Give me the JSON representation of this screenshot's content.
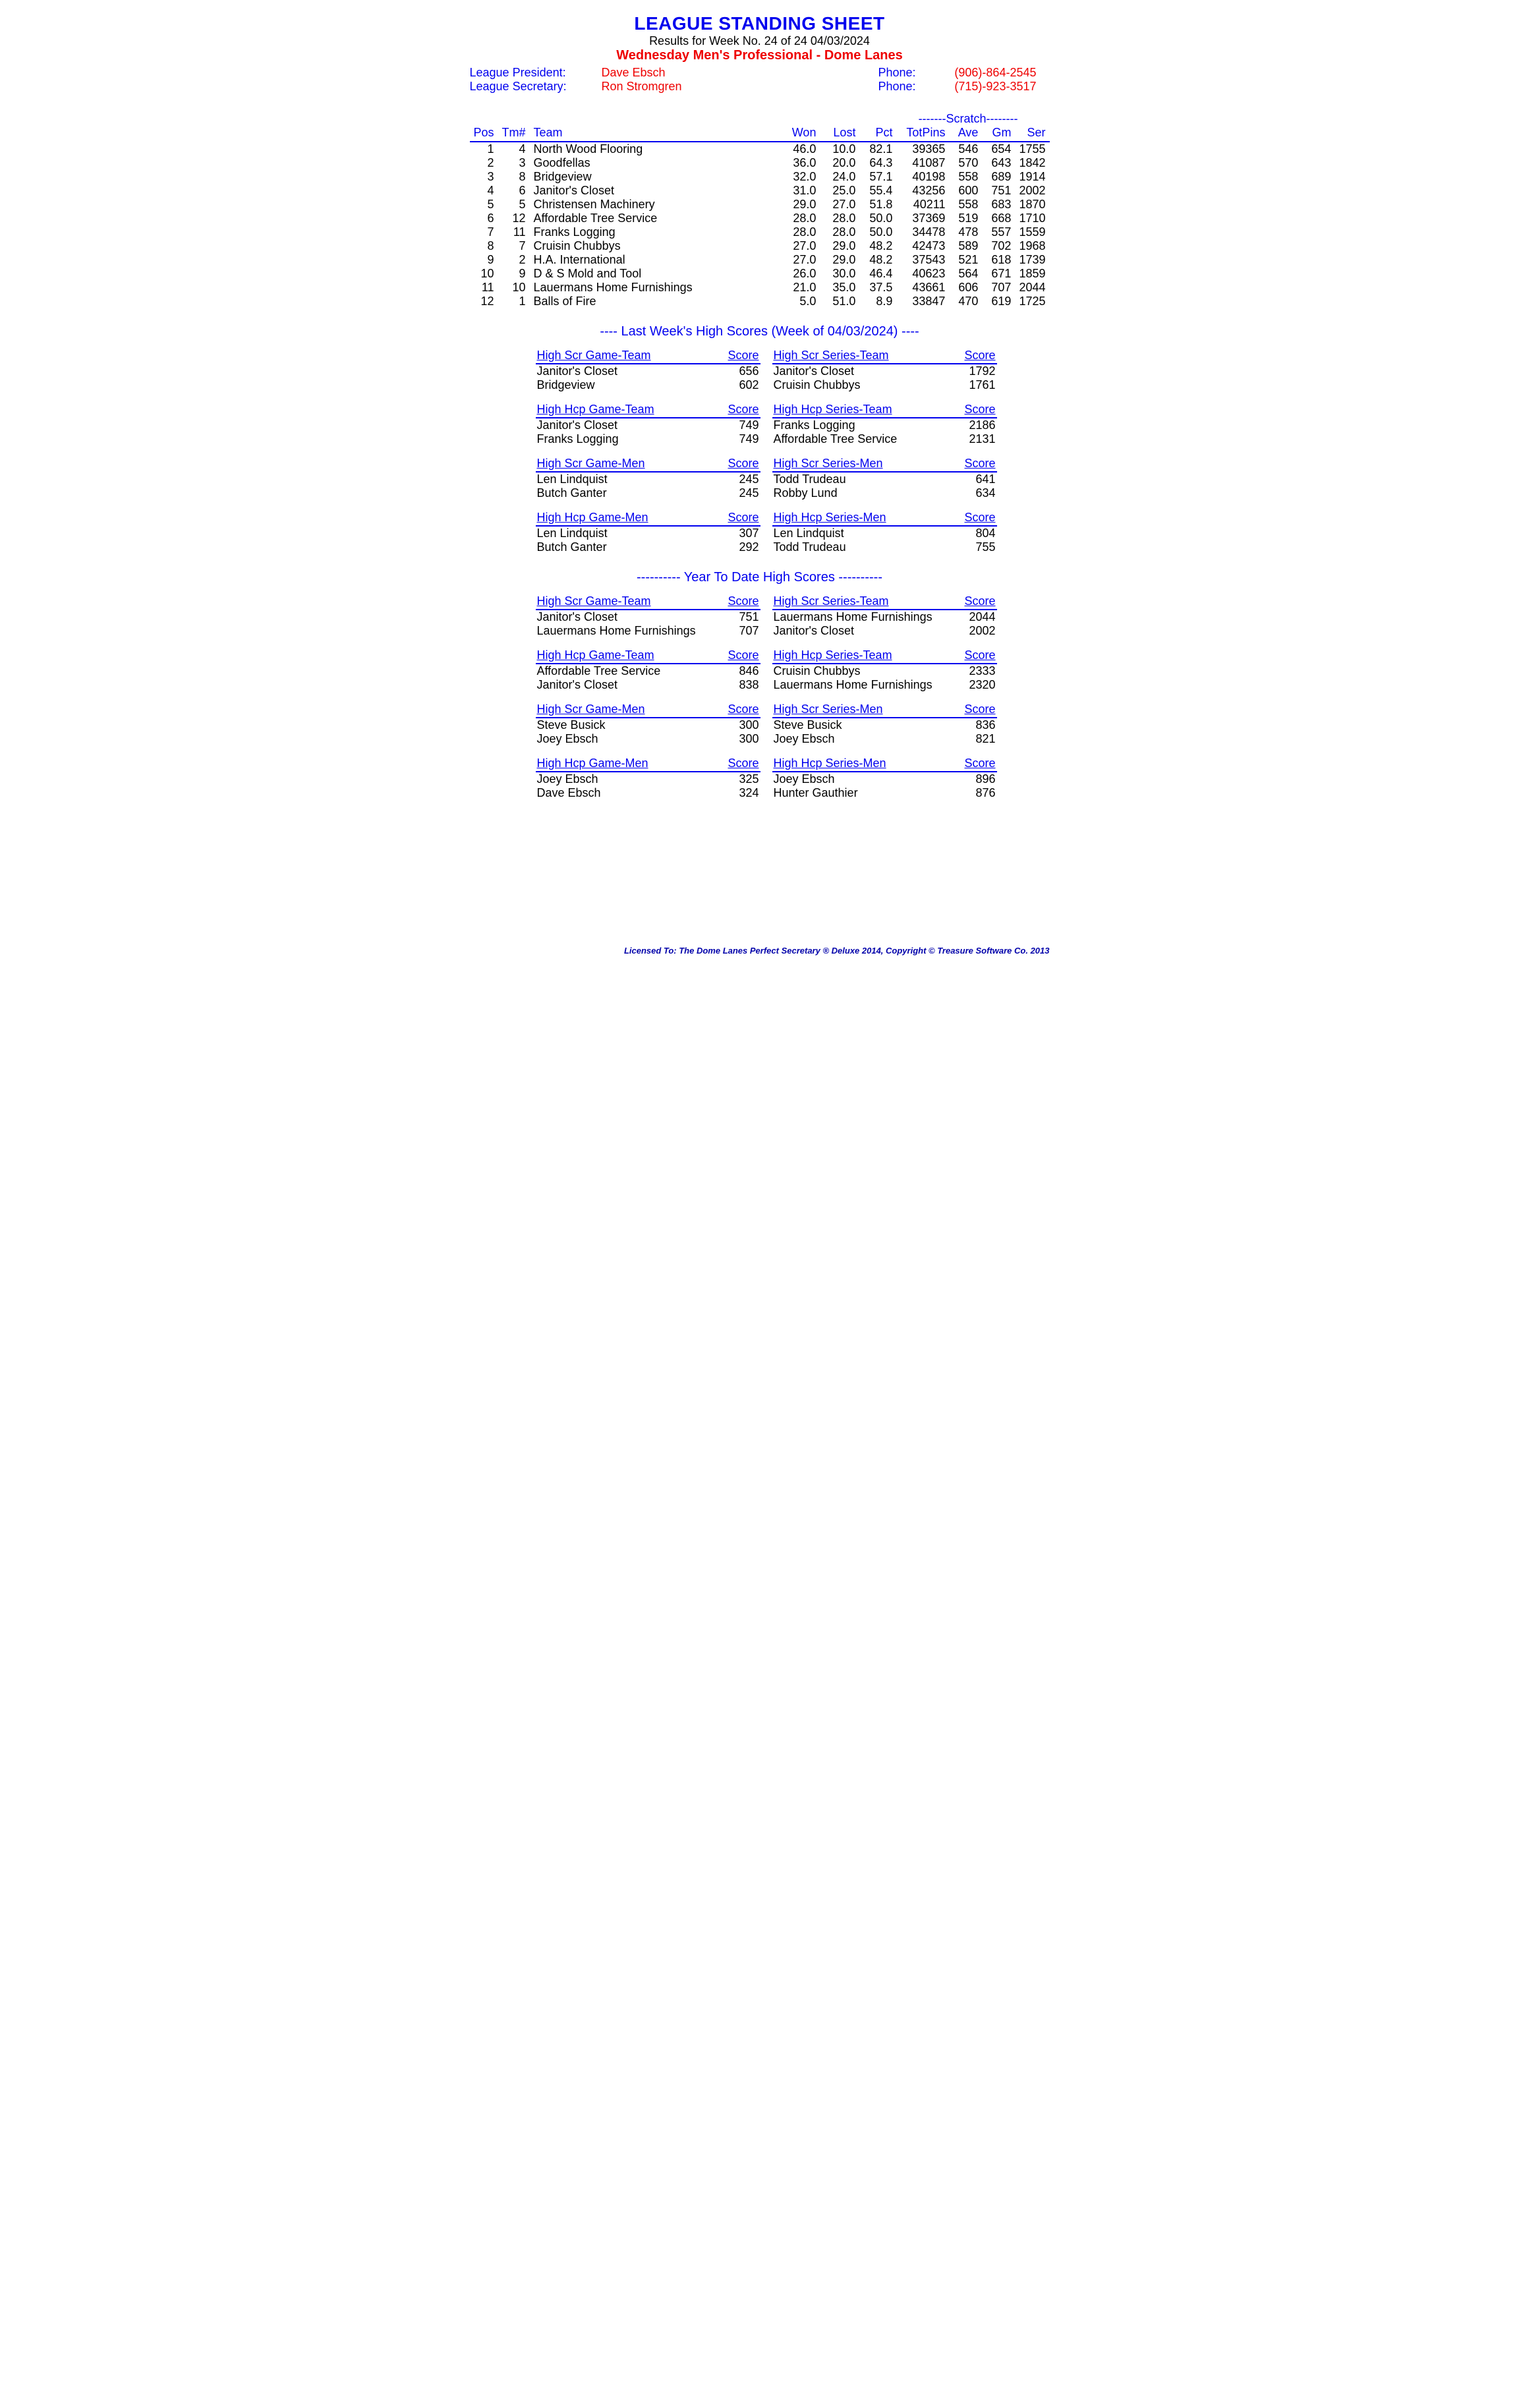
{
  "header": {
    "title": "LEAGUE STANDING SHEET",
    "results_line": "Results for Week No. 24 of 24    04/03/2024",
    "league_line": "Wednesday Men's Professional - Dome Lanes",
    "president_label": "League President:",
    "president_name": "Dave Ebsch",
    "president_phone_label": "Phone:",
    "president_phone": "(906)-864-2545",
    "secretary_label": "League Secretary:",
    "secretary_name": "Ron Stromgren",
    "secretary_phone_label": "Phone:",
    "secretary_phone": "(715)-923-3517"
  },
  "standings": {
    "scratch_label": "-------Scratch--------",
    "cols": {
      "pos": "Pos",
      "tm": "Tm#",
      "team": "Team",
      "won": "Won",
      "lost": "Lost",
      "pct": "Pct",
      "totpins": "TotPins",
      "ave": "Ave",
      "gm": "Gm",
      "ser": "Ser"
    },
    "rows": [
      {
        "pos": "1",
        "tm": "4",
        "team": "North Wood Flooring",
        "won": "46.0",
        "lost": "10.0",
        "pct": "82.1",
        "totpins": "39365",
        "ave": "546",
        "gm": "654",
        "ser": "1755"
      },
      {
        "pos": "2",
        "tm": "3",
        "team": "Goodfellas",
        "won": "36.0",
        "lost": "20.0",
        "pct": "64.3",
        "totpins": "41087",
        "ave": "570",
        "gm": "643",
        "ser": "1842"
      },
      {
        "pos": "3",
        "tm": "8",
        "team": "Bridgeview",
        "won": "32.0",
        "lost": "24.0",
        "pct": "57.1",
        "totpins": "40198",
        "ave": "558",
        "gm": "689",
        "ser": "1914"
      },
      {
        "pos": "4",
        "tm": "6",
        "team": "Janitor's Closet",
        "won": "31.0",
        "lost": "25.0",
        "pct": "55.4",
        "totpins": "43256",
        "ave": "600",
        "gm": "751",
        "ser": "2002"
      },
      {
        "pos": "5",
        "tm": "5",
        "team": "Christensen Machinery",
        "won": "29.0",
        "lost": "27.0",
        "pct": "51.8",
        "totpins": "40211",
        "ave": "558",
        "gm": "683",
        "ser": "1870"
      },
      {
        "pos": "6",
        "tm": "12",
        "team": "Affordable Tree Service",
        "won": "28.0",
        "lost": "28.0",
        "pct": "50.0",
        "totpins": "37369",
        "ave": "519",
        "gm": "668",
        "ser": "1710"
      },
      {
        "pos": "7",
        "tm": "11",
        "team": "Franks Logging",
        "won": "28.0",
        "lost": "28.0",
        "pct": "50.0",
        "totpins": "34478",
        "ave": "478",
        "gm": "557",
        "ser": "1559"
      },
      {
        "pos": "8",
        "tm": "7",
        "team": "Cruisin Chubbys",
        "won": "27.0",
        "lost": "29.0",
        "pct": "48.2",
        "totpins": "42473",
        "ave": "589",
        "gm": "702",
        "ser": "1968"
      },
      {
        "pos": "9",
        "tm": "2",
        "team": "H.A. International",
        "won": "27.0",
        "lost": "29.0",
        "pct": "48.2",
        "totpins": "37543",
        "ave": "521",
        "gm": "618",
        "ser": "1739"
      },
      {
        "pos": "10",
        "tm": "9",
        "team": "D & S Mold and Tool",
        "won": "26.0",
        "lost": "30.0",
        "pct": "46.4",
        "totpins": "40623",
        "ave": "564",
        "gm": "671",
        "ser": "1859"
      },
      {
        "pos": "11",
        "tm": "10",
        "team": "Lauermans Home Furnishings",
        "won": "21.0",
        "lost": "35.0",
        "pct": "37.5",
        "totpins": "43661",
        "ave": "606",
        "gm": "707",
        "ser": "2044"
      },
      {
        "pos": "12",
        "tm": "1",
        "team": "Balls of Fire",
        "won": "5.0",
        "lost": "51.0",
        "pct": "8.9",
        "totpins": "33847",
        "ave": "470",
        "gm": "619",
        "ser": "1725"
      }
    ]
  },
  "last_week_header": "----  Last Week's High Scores   (Week of 04/03/2024)  ----",
  "ytd_header": "---------- Year To Date High Scores ----------",
  "score_label": "Score",
  "last_week": {
    "blocks": [
      {
        "left": {
          "title": "High Scr Game-Team",
          "rows": [
            {
              "name": "Janitor's Closet",
              "score": "656"
            },
            {
              "name": "Bridgeview",
              "score": "602"
            }
          ]
        },
        "right": {
          "title": "High Scr Series-Team",
          "rows": [
            {
              "name": "Janitor's Closet",
              "score": "1792"
            },
            {
              "name": "Cruisin Chubbys",
              "score": "1761"
            }
          ]
        }
      },
      {
        "left": {
          "title": "High Hcp Game-Team",
          "rows": [
            {
              "name": "Janitor's Closet",
              "score": "749"
            },
            {
              "name": "Franks Logging",
              "score": "749"
            }
          ]
        },
        "right": {
          "title": "High Hcp Series-Team",
          "rows": [
            {
              "name": "Franks Logging",
              "score": "2186"
            },
            {
              "name": "Affordable Tree Service",
              "score": "2131"
            }
          ]
        }
      },
      {
        "left": {
          "title": "High Scr Game-Men",
          "rows": [
            {
              "name": "Len Lindquist",
              "score": "245"
            },
            {
              "name": "Butch Ganter",
              "score": "245"
            }
          ]
        },
        "right": {
          "title": "High Scr Series-Men",
          "rows": [
            {
              "name": "Todd Trudeau",
              "score": "641"
            },
            {
              "name": "Robby Lund",
              "score": "634"
            }
          ]
        }
      },
      {
        "left": {
          "title": "High Hcp Game-Men",
          "rows": [
            {
              "name": "Len Lindquist",
              "score": "307"
            },
            {
              "name": "Butch Ganter",
              "score": "292"
            }
          ]
        },
        "right": {
          "title": "High Hcp Series-Men",
          "rows": [
            {
              "name": "Len Lindquist",
              "score": "804"
            },
            {
              "name": "Todd Trudeau",
              "score": "755"
            }
          ]
        }
      }
    ]
  },
  "ytd": {
    "blocks": [
      {
        "left": {
          "title": "High Scr Game-Team",
          "rows": [
            {
              "name": "Janitor's Closet",
              "score": "751"
            },
            {
              "name": "Lauermans Home Furnishings",
              "score": "707"
            }
          ]
        },
        "right": {
          "title": "High Scr Series-Team",
          "rows": [
            {
              "name": "Lauermans Home Furnishings",
              "score": "2044"
            },
            {
              "name": "Janitor's Closet",
              "score": "2002"
            }
          ]
        }
      },
      {
        "left": {
          "title": "High Hcp Game-Team",
          "rows": [
            {
              "name": "Affordable Tree Service",
              "score": "846"
            },
            {
              "name": "Janitor's Closet",
              "score": "838"
            }
          ]
        },
        "right": {
          "title": "High Hcp Series-Team",
          "rows": [
            {
              "name": "Cruisin Chubbys",
              "score": "2333"
            },
            {
              "name": "Lauermans Home Furnishings",
              "score": "2320"
            }
          ]
        }
      },
      {
        "left": {
          "title": "High Scr Game-Men",
          "rows": [
            {
              "name": "Steve Busick",
              "score": "300"
            },
            {
              "name": "Joey Ebsch",
              "score": "300"
            }
          ]
        },
        "right": {
          "title": "High Scr Series-Men",
          "rows": [
            {
              "name": "Steve Busick",
              "score": "836"
            },
            {
              "name": "Joey Ebsch",
              "score": "821"
            }
          ]
        }
      },
      {
        "left": {
          "title": "High Hcp Game-Men",
          "rows": [
            {
              "name": "Joey Ebsch",
              "score": "325"
            },
            {
              "name": "Dave Ebsch",
              "score": "324"
            }
          ]
        },
        "right": {
          "title": "High Hcp Series-Men",
          "rows": [
            {
              "name": "Joey Ebsch",
              "score": "896"
            },
            {
              "name": "Hunter Gauthier",
              "score": "876"
            }
          ]
        }
      }
    ]
  },
  "footer": "Licensed To: The Dome Lanes    Perfect Secretary ® Deluxe  2014, Copyright © Treasure Software Co. 2013"
}
